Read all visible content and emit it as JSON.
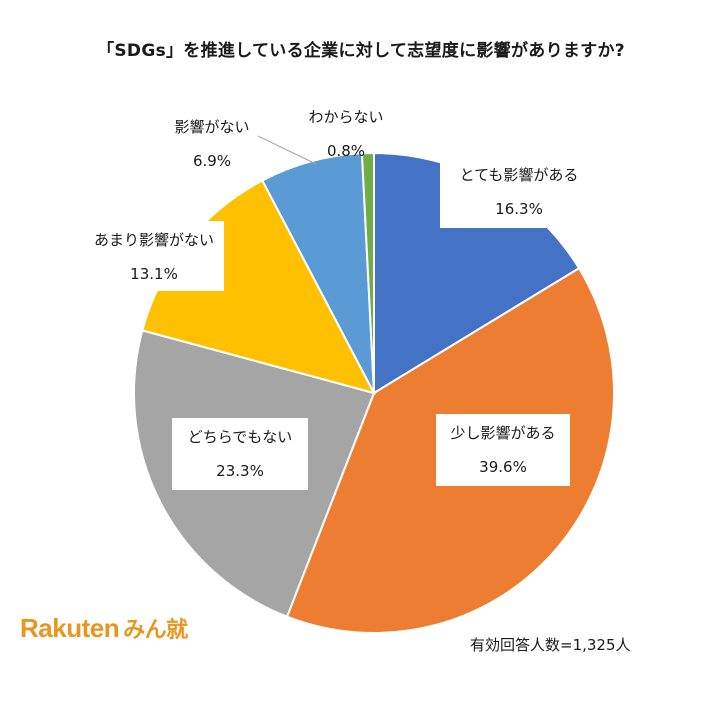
{
  "chart_data": {
    "type": "pie",
    "title": "「SDGs」を推進している企業に対して志望度に影響がありますか?",
    "slices": [
      {
        "label": "とても影響がある",
        "value": 16.3,
        "display": "16.3%",
        "color": "#4472C4"
      },
      {
        "label": "少し影響がある",
        "value": 39.6,
        "display": "39.6%",
        "color": "#ED7D31"
      },
      {
        "label": "どちらでもない",
        "value": 23.3,
        "display": "23.3%",
        "color": "#A5A5A5"
      },
      {
        "label": "あまり影響がない",
        "value": 13.1,
        "display": "13.1%",
        "color": "#FFC000"
      },
      {
        "label": "影響がない",
        "value": 6.9,
        "display": "6.9%",
        "color": "#5B9BD5"
      },
      {
        "label": "わからない",
        "value": 0.8,
        "display": "0.8%",
        "color": "#70AD47"
      }
    ],
    "start_angle": "12 o'clock",
    "direction": "clockwise",
    "note": "有効回答人数=1,325人"
  },
  "logo": {
    "brand": "Rakuten",
    "sub": "みん就"
  }
}
